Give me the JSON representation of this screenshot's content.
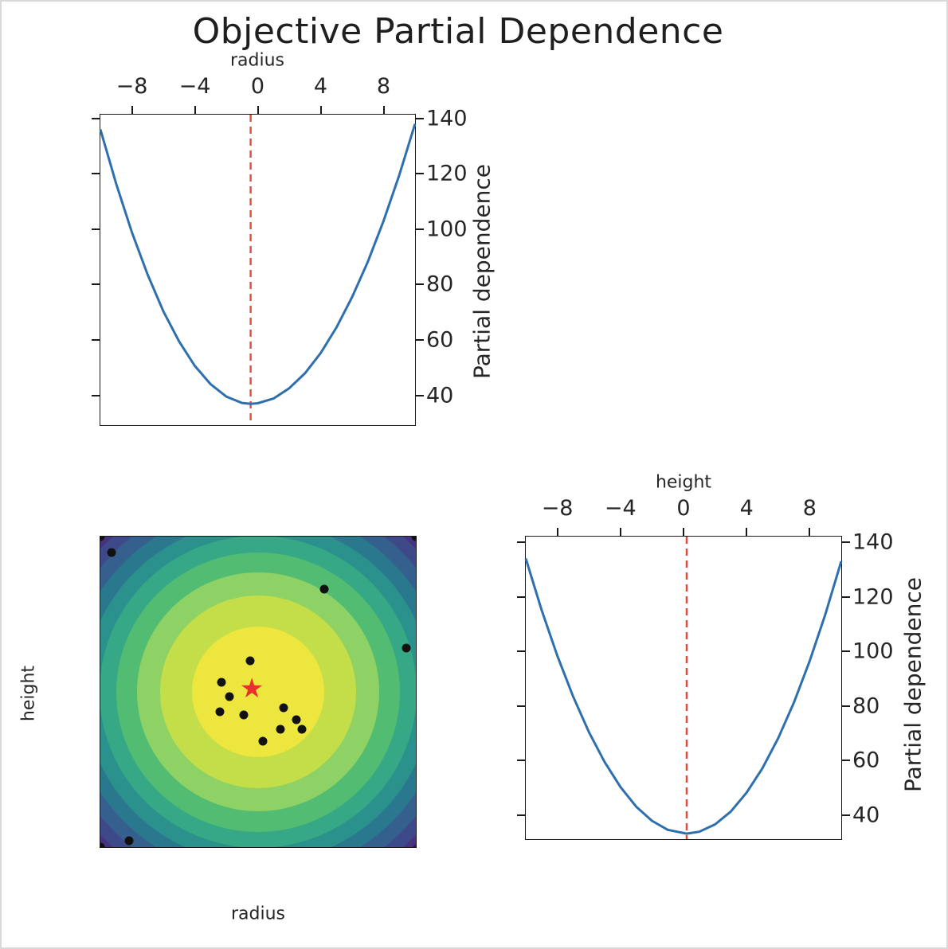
{
  "title": "Objective Partial Dependence",
  "colors": {
    "curve": "#2e6fae",
    "dashed_line": "#e8473b",
    "star": "#e8312f",
    "scatter_dot": "#111111",
    "spine": "#1a1a1a",
    "contour_background": "#3a0f62"
  },
  "chart_data": [
    {
      "id": "pd-radius",
      "type": "line",
      "xlabel": "radius",
      "ylabel": "Partial dependence",
      "xlim": [
        -10,
        10
      ],
      "ylim": [
        29.3,
        141.3
      ],
      "xticks": [
        -8,
        -4,
        0,
        4,
        8
      ],
      "yticks": [
        40,
        60,
        80,
        100,
        120,
        140
      ],
      "red_line_x": -0.45,
      "x": [
        -10,
        -9,
        -8,
        -7,
        -6,
        -5,
        -4,
        -3,
        -2,
        -1,
        -0.45,
        0,
        1,
        2,
        3,
        4,
        5,
        6,
        7,
        8,
        9,
        10
      ],
      "y": [
        136,
        116.4,
        98.9,
        83.6,
        70.4,
        59.5,
        50.7,
        44.1,
        39.6,
        37.3,
        37,
        37.2,
        38.9,
        42.6,
        48,
        55.3,
        64.5,
        75.5,
        88.3,
        103,
        119.6,
        138
      ]
    },
    {
      "id": "contour-radius-height",
      "type": "heatmap",
      "xlabel": "radius",
      "ylabel": "height",
      "xlim": [
        -10,
        10
      ],
      "ylim": [
        -10,
        10
      ],
      "xticks": [
        -8,
        -4,
        0,
        4,
        8
      ],
      "yticks": [
        8,
        4,
        0,
        -4,
        -8
      ],
      "bands": [
        {
          "r": 14.0,
          "color": "#46327e"
        },
        {
          "r": 13.6,
          "color": "#3e4989"
        },
        {
          "r": 12.8,
          "color": "#35608d"
        },
        {
          "r": 11.9,
          "color": "#2a788e"
        },
        {
          "r": 11.0,
          "color": "#2a918c"
        },
        {
          "r": 10.05,
          "color": "#36a885"
        },
        {
          "r": 9.0,
          "color": "#52bd72"
        },
        {
          "r": 7.7,
          "color": "#8ed164"
        },
        {
          "r": 6.2,
          "color": "#c3de48"
        },
        {
          "r": 4.2,
          "color": "#ece63f"
        }
      ],
      "points": [
        [
          -10,
          10
        ],
        [
          10,
          10
        ],
        [
          -10,
          -10
        ],
        [
          -9.3,
          9.0
        ],
        [
          4.2,
          6.6
        ],
        [
          9.4,
          2.8
        ],
        [
          -0.5,
          2.0
        ],
        [
          -2.3,
          0.6
        ],
        [
          -1.8,
          -0.3
        ],
        [
          -2.4,
          -1.3
        ],
        [
          -0.9,
          -1.5
        ],
        [
          1.6,
          -1.0
        ],
        [
          2.4,
          -1.8
        ],
        [
          1.4,
          -2.4
        ],
        [
          2.8,
          -2.4
        ],
        [
          0.3,
          -3.2
        ],
        [
          -8.2,
          -9.6
        ]
      ],
      "best_point": [
        -0.4,
        0.1
      ]
    },
    {
      "id": "pd-height",
      "type": "line",
      "xlabel": "height",
      "ylabel": "Partial dependence",
      "xlim": [
        -10,
        10
      ],
      "ylim": [
        31.3,
        142.0
      ],
      "xticks": [
        -8,
        -4,
        0,
        4,
        8
      ],
      "yticks": [
        40,
        60,
        80,
        100,
        120,
        140
      ],
      "red_line_x": 0.2,
      "x": [
        -10,
        -9,
        -8,
        -7,
        -6,
        -5,
        -4,
        -3,
        -2,
        -1,
        0.2,
        1,
        2,
        3,
        4,
        5,
        6,
        7,
        8,
        9,
        10
      ],
      "y": [
        134,
        115.2,
        98.4,
        83.5,
        70.5,
        59.5,
        50.4,
        43.2,
        38,
        34.7,
        33.3,
        34,
        36.7,
        41.4,
        48.3,
        57.2,
        68.2,
        81.3,
        96.5,
        113.7,
        133
      ]
    }
  ]
}
